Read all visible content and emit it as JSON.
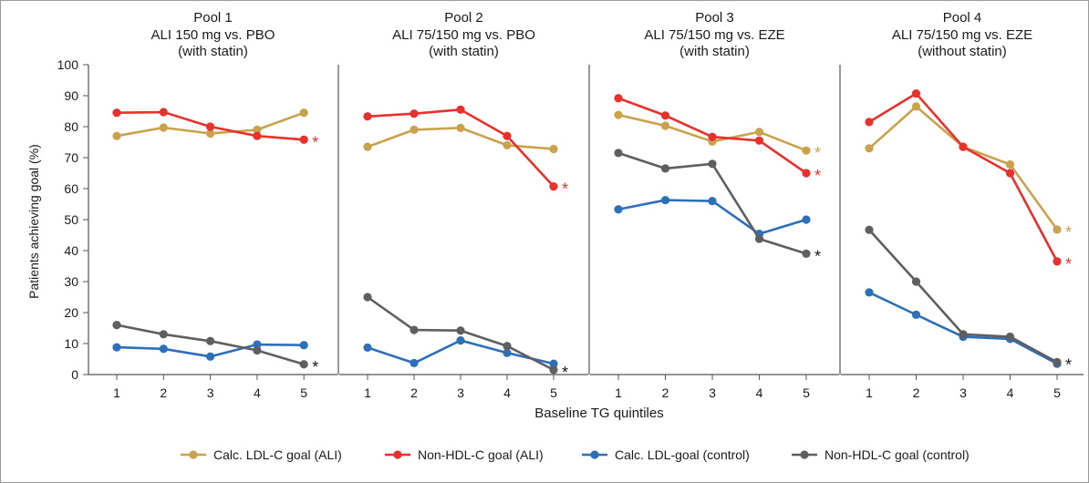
{
  "figure": {
    "ylabel": "Patients achieving goal (%)",
    "xlabel": "Baseline TG quintiles",
    "yticks": [
      "0",
      "10",
      "20",
      "30",
      "40",
      "50",
      "60",
      "70",
      "80",
      "90",
      "100"
    ],
    "xticks": [
      "1",
      "2",
      "3",
      "4",
      "5"
    ]
  },
  "legend": [
    {
      "label": "Calc. LDL-C goal (ALI)",
      "color": "#c9a24b"
    },
    {
      "label": "Non-HDL-C goal (ALI)",
      "color": "#e8302c"
    },
    {
      "label": "Calc. LDL-goal (control)",
      "color": "#2e6fba"
    },
    {
      "label": "Non-HDL-C goal (control)",
      "color": "#5f5f62"
    }
  ],
  "chart_data": [
    {
      "type": "line",
      "title": "Pool 1",
      "subtitle": "ALI 150 mg vs. PBO",
      "subtitle2": "(with statin)",
      "x": [
        1,
        2,
        3,
        4,
        5
      ],
      "ylim": [
        0,
        100
      ],
      "series": [
        {
          "name": "Calc. LDL-C goal (ALI)",
          "color": "#c9a24b",
          "values": [
            77,
            79.7,
            77.8,
            79,
            84.5
          ],
          "star": false
        },
        {
          "name": "Non-HDL-C goal (ALI)",
          "color": "#e8302c",
          "values": [
            84.5,
            84.7,
            80,
            77,
            75.8
          ],
          "star": true
        },
        {
          "name": "Calc. LDL-goal (control)",
          "color": "#2e6fba",
          "values": [
            8.8,
            8.3,
            5.8,
            9.7,
            9.5
          ],
          "star": false
        },
        {
          "name": "Non-HDL-C goal (control)",
          "color": "#5f5f62",
          "values": [
            16,
            13,
            10.8,
            7.8,
            3.3
          ],
          "star": true
        }
      ]
    },
    {
      "type": "line",
      "title": "Pool 2",
      "subtitle": "ALI 75/150 mg vs. PBO",
      "subtitle2": "(with statin)",
      "x": [
        1,
        2,
        3,
        4,
        5
      ],
      "ylim": [
        0,
        100
      ],
      "series": [
        {
          "name": "Calc. LDL-C goal (ALI)",
          "color": "#c9a24b",
          "values": [
            73.5,
            79,
            79.6,
            74,
            72.8
          ],
          "star": false
        },
        {
          "name": "Non-HDL-C goal (ALI)",
          "color": "#e8302c",
          "values": [
            83.3,
            84.2,
            85.5,
            77,
            60.7
          ],
          "star": true
        },
        {
          "name": "Calc. LDL-goal (control)",
          "color": "#2e6fba",
          "values": [
            8.7,
            3.7,
            11,
            7,
            3.5
          ],
          "star": false
        },
        {
          "name": "Non-HDL-C goal (control)",
          "color": "#5f5f62",
          "values": [
            25,
            14.4,
            14.2,
            9.2,
            1.5
          ],
          "star": true
        }
      ]
    },
    {
      "type": "line",
      "title": "Pool 3",
      "subtitle": "ALI 75/150 mg vs. EZE",
      "subtitle2": "(with statin)",
      "x": [
        1,
        2,
        3,
        4,
        5
      ],
      "ylim": [
        0,
        100
      ],
      "series": [
        {
          "name": "Calc. LDL-C goal (ALI)",
          "color": "#c9a24b",
          "values": [
            83.8,
            80.3,
            75.2,
            78.3,
            72.3
          ],
          "star": true
        },
        {
          "name": "Non-HDL-C goal (ALI)",
          "color": "#e8302c",
          "values": [
            89.2,
            83.6,
            76.7,
            75.5,
            65
          ],
          "star": true
        },
        {
          "name": "Calc. LDL-goal (control)",
          "color": "#2e6fba",
          "values": [
            53.3,
            56.3,
            56,
            45.4,
            50
          ],
          "star": false
        },
        {
          "name": "Non-HDL-C goal (control)",
          "color": "#5f5f62",
          "values": [
            71.5,
            66.5,
            68,
            43.8,
            39
          ],
          "star": true
        }
      ]
    },
    {
      "type": "line",
      "title": "Pool 4",
      "subtitle": "ALI 75/150 mg vs. EZE",
      "subtitle2": "(without statin)",
      "x": [
        1,
        2,
        3,
        4,
        5
      ],
      "ylim": [
        0,
        100
      ],
      "series": [
        {
          "name": "Calc. LDL-C goal (ALI)",
          "color": "#c9a24b",
          "values": [
            73,
            86.5,
            73.5,
            67.8,
            46.8
          ],
          "star": true
        },
        {
          "name": "Non-HDL-C goal (ALI)",
          "color": "#e8302c",
          "values": [
            81.5,
            90.7,
            73.5,
            65,
            36.5
          ],
          "star": true
        },
        {
          "name": "Calc. LDL-goal (control)",
          "color": "#2e6fba",
          "values": [
            26.5,
            19.3,
            12.2,
            11.5,
            3.5
          ],
          "star": false
        },
        {
          "name": "Non-HDL-C goal (control)",
          "color": "#5f5f62",
          "values": [
            46.7,
            30,
            13,
            12.2,
            4
          ],
          "star": true
        }
      ]
    }
  ]
}
